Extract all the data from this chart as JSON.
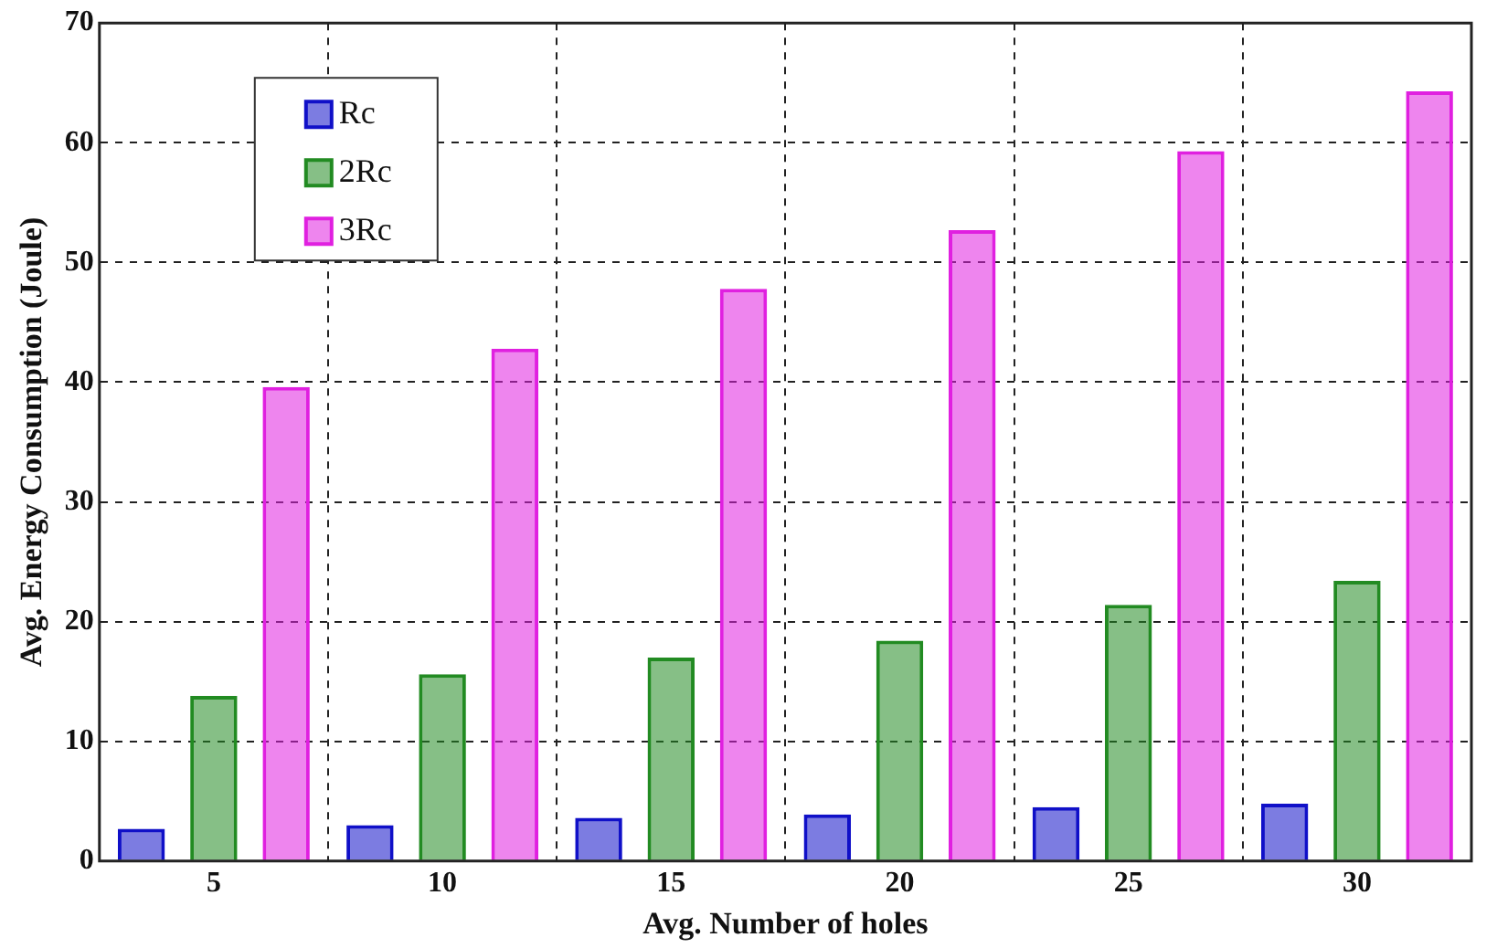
{
  "chart_data": {
    "type": "bar",
    "xlabel": "Avg. Number of holes",
    "ylabel": "Avg. Energy Consumption (Joule)",
    "categories": [
      "5",
      "10",
      "15",
      "20",
      "25",
      "30"
    ],
    "series": [
      {
        "name": "Rc",
        "color": "#1010c8",
        "values": [
          2.7,
          3.0,
          3.6,
          3.9,
          4.5,
          4.8
        ]
      },
      {
        "name": "2Rc",
        "color": "#228b22",
        "values": [
          13.8,
          15.6,
          17.0,
          18.4,
          21.4,
          23.4
        ]
      },
      {
        "name": "3Rc",
        "color": "#e020e0",
        "values": [
          39.6,
          42.8,
          47.8,
          52.7,
          59.3,
          64.3
        ]
      }
    ],
    "ylim": [
      0,
      70
    ],
    "yticks": [
      0,
      10,
      20,
      30,
      40,
      50,
      60,
      70
    ],
    "grid": true,
    "legend": "top left"
  }
}
